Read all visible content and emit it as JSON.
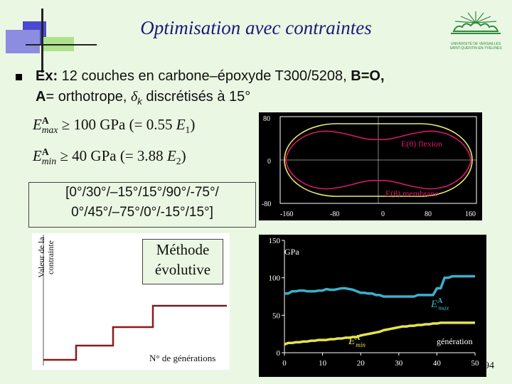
{
  "slide": {
    "title": "Optimisation avec contraintes",
    "page_number": "94"
  },
  "logo": {
    "line1": "UNIVERSITÉ DE VERSAILLES",
    "line2": "SAINT-QUENTIN-EN-YVELINES"
  },
  "bullet": {
    "ex_label": "Ex:",
    "ex_text": " 12 couches en carbone–époxyde T300/5208, ",
    "ex_bo": "B=O,",
    "line2_a": "A",
    "line2_b": "= orthotrope, ",
    "line2_delta": "δ",
    "line2_k": "k",
    "line2_c": " discrétisés à 15°"
  },
  "constraints": {
    "emax_E": "E",
    "emax_sup": "A",
    "emax_sub": "max",
    "emax_rest": " ≥ 100 GPa  (= 0.55 ",
    "emax_e1": "E",
    "emax_e1sub": "1",
    "emax_close": ")",
    "emin_E": "E",
    "emin_sup": "A",
    "emin_sub": "min",
    "emin_rest": " ≥ 40 GPa  (= 3.88 ",
    "emin_e2": "E",
    "emin_e2sub": "2",
    "emin_close": ")"
  },
  "sequence": {
    "line1": "[0°/30°/–15°/15°/90°/-75°/",
    "line2": "0°/45°/–75°/0°/-15°/15°]"
  },
  "polar_plot": {
    "flexion_label": "E(θ) flexion",
    "membrane_label": "E(θ) membrane",
    "y_ticks": [
      "80",
      "0",
      "-80"
    ],
    "x_ticks": [
      "-160",
      "-80",
      "0",
      "80",
      "160"
    ],
    "colors": {
      "flexion": "#d81a6c",
      "membrane": "#e9e96a",
      "axes": "#ffffff"
    }
  },
  "evolution_panel": {
    "ylabel_line1": "Valeur de la",
    "ylabel_line2": "contrainte",
    "box_line1": "Méthode",
    "box_line2": "évolutive",
    "xlabel": "N° de générations",
    "step_color": "#8b1a1a"
  },
  "chart_data": {
    "type": "line",
    "ylabel": "GPa",
    "xlabel": "génération",
    "xlim": [
      0,
      50
    ],
    "ylim": [
      0,
      150
    ],
    "x_ticks": [
      0,
      10,
      20,
      30,
      40,
      50
    ],
    "y_ticks": [
      0,
      50,
      100,
      150
    ],
    "grid": false,
    "series": [
      {
        "name": "EAmax",
        "color": "#3ab0cc",
        "x": [
          0,
          1,
          2,
          3,
          4,
          5,
          6,
          7,
          8,
          9,
          10,
          11,
          12,
          13,
          14,
          15,
          16,
          17,
          18,
          19,
          20,
          21,
          22,
          23,
          24,
          25,
          26,
          27,
          28,
          29,
          30,
          31,
          32,
          33,
          34,
          35,
          36,
          37,
          38,
          39,
          40,
          41,
          42,
          43,
          44,
          45,
          46,
          47,
          48,
          49,
          50
        ],
        "values": [
          79,
          79,
          82,
          82,
          83,
          83,
          82,
          82,
          82,
          83,
          83,
          85,
          84,
          84,
          85,
          86,
          86,
          85,
          84,
          82,
          80,
          80,
          79,
          79,
          77,
          77,
          75,
          75,
          75,
          75,
          75,
          75,
          75,
          75,
          75,
          77,
          77,
          77,
          77,
          77,
          86,
          86,
          100,
          100,
          102,
          102,
          102,
          102,
          102,
          102,
          102
        ]
      },
      {
        "name": "EAmin",
        "color": "#e4e44e",
        "x": [
          0,
          1,
          2,
          3,
          4,
          5,
          6,
          7,
          8,
          9,
          10,
          11,
          12,
          13,
          14,
          15,
          16,
          17,
          18,
          19,
          20,
          21,
          22,
          23,
          24,
          25,
          26,
          27,
          28,
          29,
          30,
          31,
          32,
          33,
          34,
          35,
          36,
          37,
          38,
          39,
          40,
          41,
          42,
          43,
          44,
          45,
          46,
          47,
          48,
          49,
          50
        ],
        "values": [
          11,
          13,
          13,
          14,
          14,
          15,
          15,
          16,
          16,
          17,
          17,
          17,
          18,
          18,
          19,
          19,
          20,
          20,
          21,
          21,
          23,
          24,
          25,
          26,
          27,
          28,
          30,
          31,
          32,
          33,
          34,
          35,
          35,
          36,
          36,
          37,
          37,
          38,
          38,
          39,
          39,
          40,
          40,
          40,
          40,
          40,
          40,
          40,
          40,
          40,
          40
        ]
      }
    ],
    "labels": {
      "emax_E": "E",
      "emax_sup": "A",
      "emax_sub": "max",
      "emin_E": "E",
      "emin_sup": "A",
      "emin_sub": "min"
    }
  }
}
